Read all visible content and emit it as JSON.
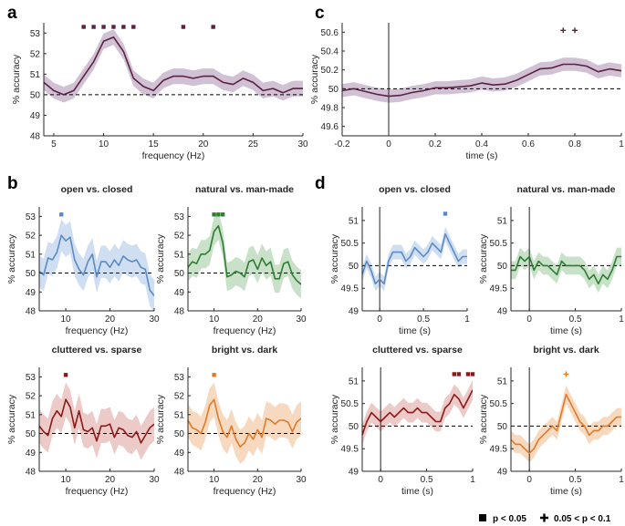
{
  "legend": {
    "square_label": "p < 0.05",
    "plus_label": "0.05 < p < 0.1"
  },
  "chart_data": [
    {
      "id": "a",
      "label": "a",
      "type": "line",
      "title": "",
      "xlabel": "frequency (Hz)",
      "ylabel": "% accuracy",
      "xlim": [
        4,
        30
      ],
      "ylim": [
        48,
        53.5
      ],
      "xticks": [
        5,
        10,
        15,
        20,
        25,
        30
      ],
      "yticks": [
        48,
        49,
        50,
        51,
        52,
        53
      ],
      "chance": 50,
      "color": "#5a2140",
      "band_color": "#c8b7cc",
      "x": [
        4,
        5,
        6,
        7,
        8,
        9,
        10,
        11,
        12,
        13,
        14,
        15,
        16,
        17,
        18,
        19,
        20,
        21,
        22,
        23,
        24,
        25,
        26,
        27,
        28,
        29,
        30
      ],
      "y": [
        50.6,
        50.2,
        50.0,
        50.2,
        50.9,
        51.6,
        52.6,
        52.8,
        52.1,
        50.8,
        50.4,
        50.2,
        50.7,
        50.9,
        50.9,
        50.8,
        50.9,
        50.9,
        50.6,
        50.5,
        50.8,
        50.6,
        50.2,
        50.3,
        50.1,
        50.3,
        50.3
      ],
      "band": 0.38,
      "sig": [
        {
          "x": 8,
          "k": "s"
        },
        {
          "x": 9,
          "k": "s"
        },
        {
          "x": 10,
          "k": "s"
        },
        {
          "x": 11,
          "k": "s"
        },
        {
          "x": 12,
          "k": "s"
        },
        {
          "x": 13,
          "k": "s"
        },
        {
          "x": 18,
          "k": "s"
        },
        {
          "x": 21,
          "k": "s"
        }
      ],
      "sig_y": 53.3
    },
    {
      "id": "c",
      "label": "c",
      "type": "line",
      "title": "",
      "xlabel": "time (s)",
      "ylabel": "% accuracy",
      "xlim": [
        -0.2,
        1
      ],
      "ylim": [
        49.5,
        50.7
      ],
      "xticks": [
        -0.2,
        0,
        0.2,
        0.4,
        0.6,
        0.8,
        1
      ],
      "xticklabels": [
        "-0.2",
        "0",
        "0.2",
        "0.4",
        "0.6",
        "0.8",
        "1"
      ],
      "yticks": [
        49.6,
        49.8,
        50,
        50.2,
        50.4,
        50.6
      ],
      "yticklabels": [
        "49.6",
        "49.8",
        "50",
        "50.2",
        "50.4",
        "50.6"
      ],
      "chance": 50,
      "onset": 0,
      "color": "#5a2140",
      "band_color": "#c8b7cc",
      "x": [
        -0.2,
        -0.15,
        -0.1,
        -0.05,
        0,
        0.05,
        0.1,
        0.15,
        0.2,
        0.25,
        0.3,
        0.35,
        0.4,
        0.45,
        0.5,
        0.55,
        0.6,
        0.65,
        0.7,
        0.75,
        0.8,
        0.85,
        0.9,
        0.95,
        1
      ],
      "y": [
        49.98,
        50.0,
        49.97,
        49.94,
        49.92,
        49.93,
        49.96,
        49.98,
        50.01,
        50.01,
        50.02,
        50.03,
        50.06,
        50.04,
        50.05,
        50.09,
        50.15,
        50.21,
        50.22,
        50.26,
        50.26,
        50.24,
        50.18,
        50.21,
        50.19
      ],
      "band": 0.07,
      "sig": [
        {
          "x": 0.75,
          "k": "p"
        },
        {
          "x": 0.8,
          "k": "p"
        }
      ],
      "sig_y": 50.62
    },
    {
      "id": "b1",
      "label": "b",
      "type": "line",
      "title": "open vs. closed",
      "xlabel": "frequency (Hz)",
      "ylabel": "% accuracy",
      "xlim": [
        4,
        30
      ],
      "ylim": [
        48,
        53.5
      ],
      "xticks": [
        10,
        20,
        30
      ],
      "yticks": [
        48,
        49,
        50,
        51,
        52,
        53
      ],
      "chance": 50,
      "color": "#5b8bc4",
      "band_color": "#c7d8ee",
      "x": [
        4,
        5,
        6,
        7,
        8,
        9,
        10,
        11,
        12,
        13,
        14,
        15,
        16,
        17,
        18,
        19,
        20,
        21,
        22,
        23,
        24,
        25,
        26,
        27,
        28,
        29,
        30
      ],
      "y": [
        50.1,
        49.9,
        50.8,
        50.7,
        51.1,
        52.0,
        51.7,
        51.9,
        50.7,
        50.2,
        49.9,
        50.6,
        51.0,
        49.8,
        50.6,
        50.6,
        50.3,
        50.7,
        50.4,
        50.9,
        50.7,
        50.6,
        50.7,
        50.3,
        50.2,
        49.1,
        48.8
      ],
      "band": 0.85,
      "sig": [
        {
          "x": 9,
          "k": "s"
        }
      ],
      "sig_y": 53.1
    },
    {
      "id": "b2",
      "label": "",
      "type": "line",
      "title": "natural vs. man-made",
      "xlabel": "frequency (Hz)",
      "ylabel": "% accuracy",
      "xlim": [
        4,
        30
      ],
      "ylim": [
        48,
        53.5
      ],
      "xticks": [
        10,
        20,
        30
      ],
      "yticks": [
        48,
        49,
        50,
        51,
        52,
        53
      ],
      "chance": 50,
      "color": "#2e7d32",
      "band_color": "#bfdcbf",
      "x": [
        4,
        5,
        6,
        7,
        8,
        9,
        10,
        11,
        12,
        13,
        14,
        15,
        16,
        17,
        18,
        19,
        20,
        21,
        22,
        23,
        24,
        25,
        26,
        27,
        28,
        29,
        30
      ],
      "y": [
        50.3,
        50.6,
        50.5,
        51.0,
        51.0,
        51.2,
        52.2,
        52.5,
        51.6,
        49.8,
        49.9,
        50.1,
        50.0,
        49.8,
        50.6,
        50.7,
        50.2,
        50.8,
        50.4,
        50.6,
        49.7,
        49.7,
        50.5,
        50.6,
        49.9,
        49.6,
        49.4
      ],
      "band": 0.75,
      "sig": [
        {
          "x": 10,
          "k": "s"
        },
        {
          "x": 11,
          "k": "s"
        },
        {
          "x": 12,
          "k": "s"
        }
      ],
      "sig_y": 53.1
    },
    {
      "id": "b3",
      "label": "",
      "type": "line",
      "title": "cluttered vs. sparse",
      "xlabel": "frequency (Hz)",
      "ylabel": "% accuracy",
      "xlim": [
        4,
        30
      ],
      "ylim": [
        48,
        53.5
      ],
      "xticks": [
        10,
        20,
        30
      ],
      "yticks": [
        48,
        49,
        50,
        51,
        52,
        53
      ],
      "chance": 50,
      "color": "#8b1a1a",
      "band_color": "#e8c1bd",
      "x": [
        4,
        5,
        6,
        7,
        8,
        9,
        10,
        11,
        12,
        13,
        14,
        15,
        16,
        17,
        18,
        19,
        20,
        21,
        22,
        23,
        24,
        25,
        26,
        27,
        28,
        29,
        30
      ],
      "y": [
        50.4,
        50.1,
        49.9,
        50.8,
        51.2,
        50.9,
        51.8,
        51.4,
        50.3,
        51.2,
        50.2,
        50.1,
        50.3,
        49.6,
        50.4,
        50.4,
        50.5,
        49.8,
        50.3,
        50.2,
        49.9,
        49.8,
        50.1,
        49.5,
        49.9,
        50.3,
        50.5
      ],
      "band": 0.9,
      "sig": [
        {
          "x": 10,
          "k": "s"
        }
      ],
      "sig_y": 53.1
    },
    {
      "id": "b4",
      "label": "",
      "type": "line",
      "title": "bright vs. dark",
      "xlabel": "frequency (Hz)",
      "ylabel": "% accuracy",
      "xlim": [
        4,
        30
      ],
      "ylim": [
        48,
        53.5
      ],
      "xticks": [
        10,
        20,
        30
      ],
      "yticks": [
        48,
        49,
        50,
        51,
        52,
        53
      ],
      "chance": 50,
      "color": "#e07b2a",
      "band_color": "#f6d2b4",
      "x": [
        4,
        5,
        6,
        7,
        8,
        9,
        10,
        11,
        12,
        13,
        14,
        15,
        16,
        17,
        18,
        19,
        20,
        21,
        22,
        23,
        24,
        25,
        26,
        27,
        28,
        29,
        30
      ],
      "y": [
        50.7,
        50.3,
        50.2,
        50.0,
        50.6,
        51.5,
        51.8,
        50.8,
        50.1,
        49.8,
        50.4,
        49.7,
        49.3,
        49.5,
        50.0,
        49.7,
        50.2,
        49.8,
        50.8,
        50.7,
        50.5,
        50.7,
        50.7,
        50.6,
        50.1,
        50.6,
        50.8
      ],
      "band": 0.9,
      "sig": [
        {
          "x": 10,
          "k": "s"
        }
      ],
      "sig_y": 53.1
    },
    {
      "id": "d1",
      "label": "d",
      "type": "line",
      "title": "open vs. closed",
      "xlabel": "time (s)",
      "ylabel": "% accuracy",
      "xlim": [
        -0.2,
        1
      ],
      "ylim": [
        49,
        51.3
      ],
      "xticks": [
        0,
        0.5,
        1
      ],
      "xticklabels": [
        "0",
        "0.5",
        "1"
      ],
      "yticks": [
        49,
        49.5,
        50,
        50.5,
        51
      ],
      "yticklabels": [
        "49",
        "49.5",
        "50",
        "50.5",
        "51"
      ],
      "chance": 50,
      "onset": 0,
      "color": "#5b8bc4",
      "band_color": "#c7d8ee",
      "x": [
        -0.2,
        -0.15,
        -0.1,
        -0.05,
        0,
        0.05,
        0.1,
        0.15,
        0.2,
        0.25,
        0.3,
        0.35,
        0.4,
        0.45,
        0.5,
        0.55,
        0.6,
        0.65,
        0.7,
        0.75,
        0.8,
        0.85,
        0.9,
        0.95,
        1
      ],
      "y": [
        49.8,
        50.1,
        49.9,
        49.6,
        49.7,
        49.6,
        50.1,
        50.3,
        50.3,
        50.3,
        50.1,
        50.2,
        50.4,
        50.3,
        50.2,
        50.3,
        50.5,
        50.4,
        50.3,
        50.7,
        50.5,
        50.3,
        50.1,
        50.2,
        50.2
      ],
      "band": 0.16,
      "sig": [
        {
          "x": 0.75,
          "k": "s"
        }
      ],
      "sig_y": 51.15
    },
    {
      "id": "d2",
      "label": "",
      "type": "line",
      "title": "natural vs. man-made",
      "xlabel": "time (s)",
      "ylabel": "% accuracy",
      "xlim": [
        -0.2,
        1
      ],
      "ylim": [
        49,
        51.3
      ],
      "xticks": [
        0,
        0.5,
        1
      ],
      "xticklabels": [
        "0",
        "0.5",
        "1"
      ],
      "yticks": [
        49,
        49.5,
        50,
        50.5,
        51
      ],
      "yticklabels": [
        "49",
        "49.5",
        "50",
        "50.5",
        "51"
      ],
      "chance": 50,
      "onset": 0,
      "color": "#2e7d32",
      "band_color": "#bfdcbf",
      "x": [
        -0.2,
        -0.15,
        -0.1,
        -0.05,
        0,
        0.05,
        0.1,
        0.15,
        0.2,
        0.25,
        0.3,
        0.35,
        0.4,
        0.45,
        0.5,
        0.55,
        0.6,
        0.65,
        0.7,
        0.75,
        0.8,
        0.85,
        0.9,
        0.95,
        1
      ],
      "y": [
        49.9,
        49.9,
        50.2,
        50.1,
        50.2,
        49.9,
        50.1,
        50.0,
        50.0,
        49.9,
        49.8,
        50.1,
        50.0,
        50.0,
        50.0,
        50.0,
        49.9,
        49.7,
        49.8,
        49.6,
        49.8,
        49.7,
        49.9,
        50.2,
        50.2
      ],
      "band": 0.2,
      "sig": [],
      "sig_y": 51.15
    },
    {
      "id": "d3",
      "label": "",
      "type": "line",
      "title": "cluttered vs. sparse",
      "xlabel": "time (s)",
      "ylabel": "% accuracy",
      "xlim": [
        -0.2,
        1
      ],
      "ylim": [
        49,
        51.3
      ],
      "xticks": [
        0,
        0.5,
        1
      ],
      "xticklabels": [
        "0",
        "0.5",
        "1"
      ],
      "yticks": [
        49,
        49.5,
        50,
        50.5,
        51
      ],
      "yticklabels": [
        "49",
        "49.5",
        "50",
        "50.5",
        "51"
      ],
      "chance": 50,
      "onset": 0,
      "color": "#8b1a1a",
      "band_color": "#e8c1bd",
      "x": [
        -0.2,
        -0.15,
        -0.1,
        -0.05,
        0,
        0.05,
        0.1,
        0.15,
        0.2,
        0.25,
        0.3,
        0.35,
        0.4,
        0.45,
        0.5,
        0.55,
        0.6,
        0.65,
        0.7,
        0.75,
        0.8,
        0.85,
        0.9,
        0.95,
        1
      ],
      "y": [
        49.8,
        50.1,
        50.3,
        50.2,
        50.1,
        50.2,
        50.3,
        50.2,
        50.3,
        50.4,
        50.3,
        50.3,
        50.4,
        50.3,
        50.3,
        50.2,
        50.1,
        50.1,
        50.4,
        50.5,
        50.7,
        50.6,
        50.4,
        50.6,
        50.8
      ],
      "band": 0.22,
      "sig": [
        {
          "x": 0.8,
          "k": "s"
        },
        {
          "x": 0.85,
          "k": "s"
        },
        {
          "x": 0.95,
          "k": "s"
        },
        {
          "x": 1.0,
          "k": "s"
        }
      ],
      "sig_y": 51.15
    },
    {
      "id": "d4",
      "label": "",
      "type": "line",
      "title": "bright vs. dark",
      "xlabel": "time (s)",
      "ylabel": "% accuracy",
      "xlim": [
        -0.2,
        1
      ],
      "ylim": [
        49,
        51.3
      ],
      "xticks": [
        0,
        0.5,
        1
      ],
      "xticklabels": [
        "0",
        "0.5",
        "1"
      ],
      "yticks": [
        49,
        49.5,
        50,
        50.5,
        51
      ],
      "yticklabels": [
        "49",
        "49.5",
        "50",
        "50.5",
        "51"
      ],
      "chance": 50,
      "onset": 0,
      "color": "#e07b2a",
      "band_color": "#f6d2b4",
      "x": [
        -0.2,
        -0.15,
        -0.1,
        -0.05,
        0,
        0.05,
        0.1,
        0.15,
        0.2,
        0.25,
        0.3,
        0.35,
        0.4,
        0.45,
        0.5,
        0.55,
        0.6,
        0.65,
        0.7,
        0.75,
        0.8,
        0.85,
        0.9,
        0.95,
        1
      ],
      "y": [
        49.7,
        49.6,
        49.6,
        49.5,
        49.4,
        49.5,
        49.7,
        49.8,
        49.9,
        50.0,
        49.9,
        50.3,
        50.7,
        50.5,
        50.3,
        50.1,
        50.0,
        49.8,
        49.9,
        49.9,
        50.0,
        50.0,
        50.1,
        50.2,
        50.2
      ],
      "band": 0.2,
      "sig": [
        {
          "x": 0.4,
          "k": "p"
        }
      ],
      "sig_y": 51.15
    }
  ]
}
